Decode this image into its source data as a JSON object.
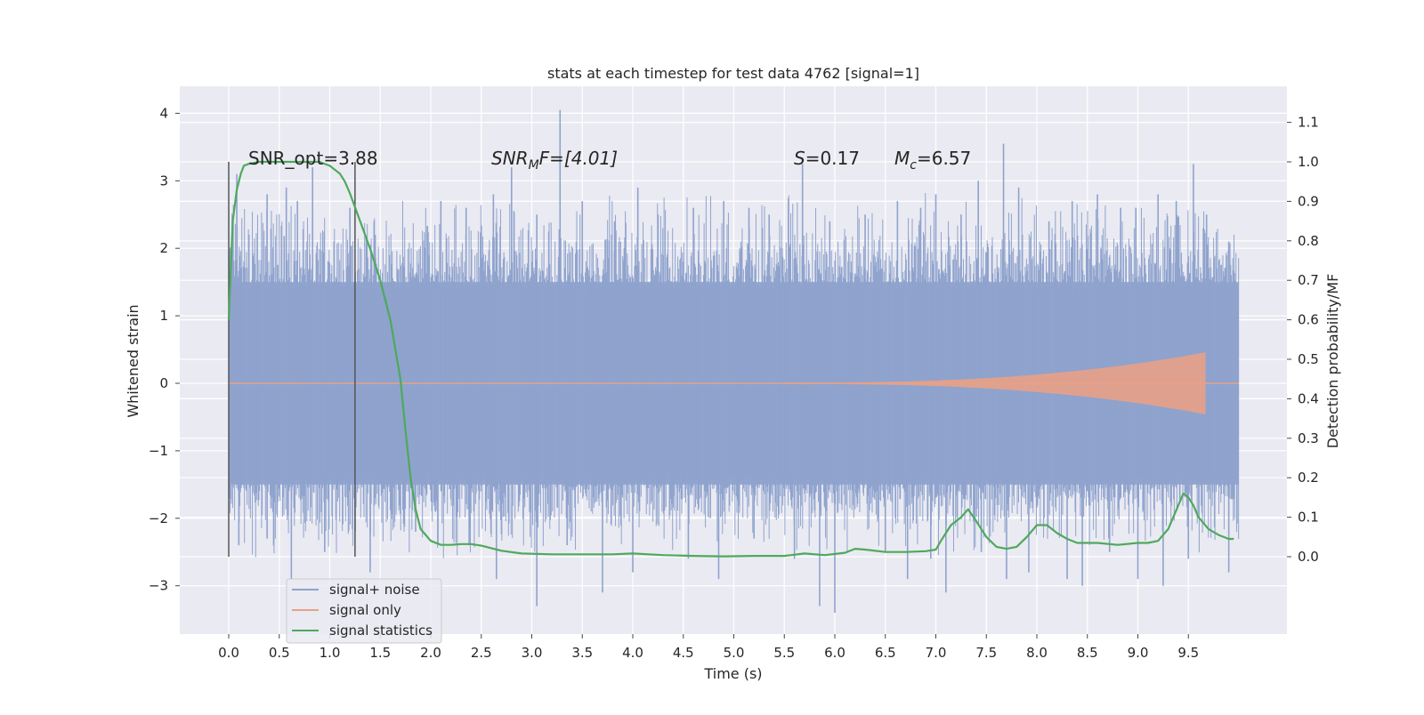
{
  "chart_data": {
    "type": "line",
    "title": "stats at each timestep for test data 4762 [signal=1]",
    "xlabel": "Time (s)",
    "ylabel_left": "Whitened strain",
    "ylabel_right": "Detection probability/MF",
    "xlim": [
      -0.5,
      10.5
    ],
    "ylim_left": [
      -3.75,
      4.4
    ],
    "ylim_right": [
      -0.2,
      1.18
    ],
    "grid": true,
    "legend_position": "lower-left",
    "x_ticks": [
      "0.0",
      "0.5",
      "1.0",
      "1.5",
      "2.0",
      "2.5",
      "3.0",
      "3.5",
      "4.0",
      "4.5",
      "5.0",
      "5.5",
      "6.0",
      "6.5",
      "7.0",
      "7.5",
      "8.0",
      "8.5",
      "9.0",
      "9.5"
    ],
    "y_left_ticks": [
      "−3",
      "−2",
      "−1",
      "0",
      "1",
      "2",
      "3",
      "4"
    ],
    "y_right_ticks": [
      "0.0",
      "0.1",
      "0.2",
      "0.3",
      "0.4",
      "0.5",
      "0.6",
      "0.7",
      "0.8",
      "0.9",
      "1.0",
      "1.1"
    ],
    "annotations": {
      "snr_opt": "SNR_opt=3.88",
      "snr_mf_base": "SNR",
      "snr_mf_sub": "M",
      "snr_mf_rest": "F=[4.01]",
      "s_label": "S",
      "s_value": "=0.17",
      "mc_label": "M",
      "mc_sub": "c",
      "mc_value": "=6.57"
    },
    "vertical_markers_x": [
      0.0,
      1.25
    ],
    "series": [
      {
        "name": "signal+ noise",
        "color": "#8fa3cd",
        "description_level": "band",
        "x_range": [
          0.0,
          10.0
        ],
        "dense_band": [
          -1.5,
          1.5
        ],
        "peaks_x": [
          0.03,
          0.08,
          0.2,
          0.38,
          0.57,
          0.68,
          0.83,
          1.2,
          1.45,
          2.1,
          2.35,
          2.62,
          2.8,
          3.05,
          3.28,
          3.5,
          3.82,
          4.05,
          4.25,
          4.6,
          4.9,
          5.15,
          5.35,
          5.68,
          5.95,
          6.3,
          6.62,
          6.85,
          7.0,
          7.25,
          7.42,
          7.67,
          7.82,
          8.12,
          8.35,
          8.6,
          8.83,
          8.98,
          9.2,
          9.38,
          9.55,
          9.68,
          9.9
        ],
        "peaks_y": [
          1.8,
          3.1,
          2.2,
          2.8,
          2.9,
          2.7,
          3.2,
          2.6,
          2.2,
          2.7,
          2.6,
          2.8,
          3.2,
          2.5,
          4.05,
          2.7,
          2.4,
          2.9,
          2.5,
          2.6,
          2.7,
          2.6,
          2.5,
          3.25,
          2.4,
          2.5,
          2.7,
          2.6,
          2.8,
          2.5,
          3.0,
          3.55,
          2.9,
          2.4,
          2.7,
          2.8,
          2.6,
          2.6,
          2.8,
          2.7,
          3.25,
          2.5,
          2.1
        ],
        "troughs_x": [
          0.1,
          0.38,
          0.62,
          0.95,
          1.4,
          1.85,
          2.38,
          2.65,
          3.05,
          3.35,
          3.7,
          4.0,
          4.55,
          4.85,
          5.2,
          5.6,
          5.85,
          6.0,
          6.5,
          6.72,
          6.95,
          7.1,
          7.45,
          7.7,
          7.92,
          8.3,
          8.45,
          8.72,
          9.0,
          9.25,
          9.5,
          9.9
        ],
        "troughs_y": [
          -2.4,
          -2.3,
          -2.9,
          -2.5,
          -2.8,
          -2.2,
          -2.4,
          -2.9,
          -3.3,
          -2.4,
          -3.1,
          -2.8,
          -2.6,
          -2.9,
          -2.3,
          -2.6,
          -3.3,
          -3.4,
          -2.5,
          -2.9,
          -2.6,
          -3.1,
          -2.5,
          -2.9,
          -2.8,
          -2.9,
          -3.0,
          -2.5,
          -2.9,
          -3.0,
          -2.6,
          -2.8
        ]
      },
      {
        "name": "signal only",
        "color": "#e8a187",
        "description_level": "chirp",
        "x_range": [
          0.0,
          10.0
        ],
        "chirp_start_x": 5.5,
        "chirp_end_x": 9.67,
        "chirp_peak_amplitude": 0.45
      },
      {
        "name": "signal statistics",
        "color": "#4ea95c",
        "axis": "right",
        "x": [
          0.0,
          0.04,
          0.08,
          0.12,
          0.15,
          0.2,
          0.3,
          0.5,
          0.7,
          0.9,
          1.0,
          1.1,
          1.15,
          1.2,
          1.3,
          1.4,
          1.5,
          1.6,
          1.7,
          1.75,
          1.8,
          1.85,
          1.9,
          2.0,
          2.1,
          2.2,
          2.3,
          2.4,
          2.5,
          2.7,
          2.9,
          3.2,
          3.5,
          3.8,
          4.0,
          4.3,
          4.6,
          4.9,
          5.2,
          5.5,
          5.7,
          5.9,
          6.1,
          6.2,
          6.3,
          6.5,
          6.7,
          6.9,
          7.0,
          7.05,
          7.15,
          7.25,
          7.32,
          7.4,
          7.5,
          7.6,
          7.7,
          7.8,
          7.9,
          8.0,
          8.1,
          8.2,
          8.3,
          8.4,
          8.5,
          8.6,
          8.8,
          9.0,
          9.1,
          9.2,
          9.3,
          9.4,
          9.45,
          9.5,
          9.55,
          9.6,
          9.7,
          9.8,
          9.9,
          9.95
        ],
        "y": [
          0.6,
          0.85,
          0.93,
          0.97,
          0.99,
          0.995,
          1.0,
          1.0,
          1.0,
          1.0,
          0.99,
          0.97,
          0.95,
          0.92,
          0.85,
          0.78,
          0.7,
          0.6,
          0.45,
          0.32,
          0.2,
          0.12,
          0.07,
          0.04,
          0.03,
          0.03,
          0.032,
          0.032,
          0.028,
          0.015,
          0.008,
          0.006,
          0.006,
          0.006,
          0.008,
          0.004,
          0.002,
          0.001,
          0.002,
          0.002,
          0.008,
          0.004,
          0.01,
          0.02,
          0.018,
          0.012,
          0.012,
          0.014,
          0.018,
          0.04,
          0.08,
          0.1,
          0.12,
          0.09,
          0.05,
          0.025,
          0.02,
          0.025,
          0.05,
          0.08,
          0.08,
          0.06,
          0.045,
          0.035,
          0.035,
          0.035,
          0.03,
          0.035,
          0.035,
          0.04,
          0.07,
          0.13,
          0.16,
          0.15,
          0.13,
          0.1,
          0.07,
          0.055,
          0.045,
          0.045
        ]
      }
    ]
  }
}
